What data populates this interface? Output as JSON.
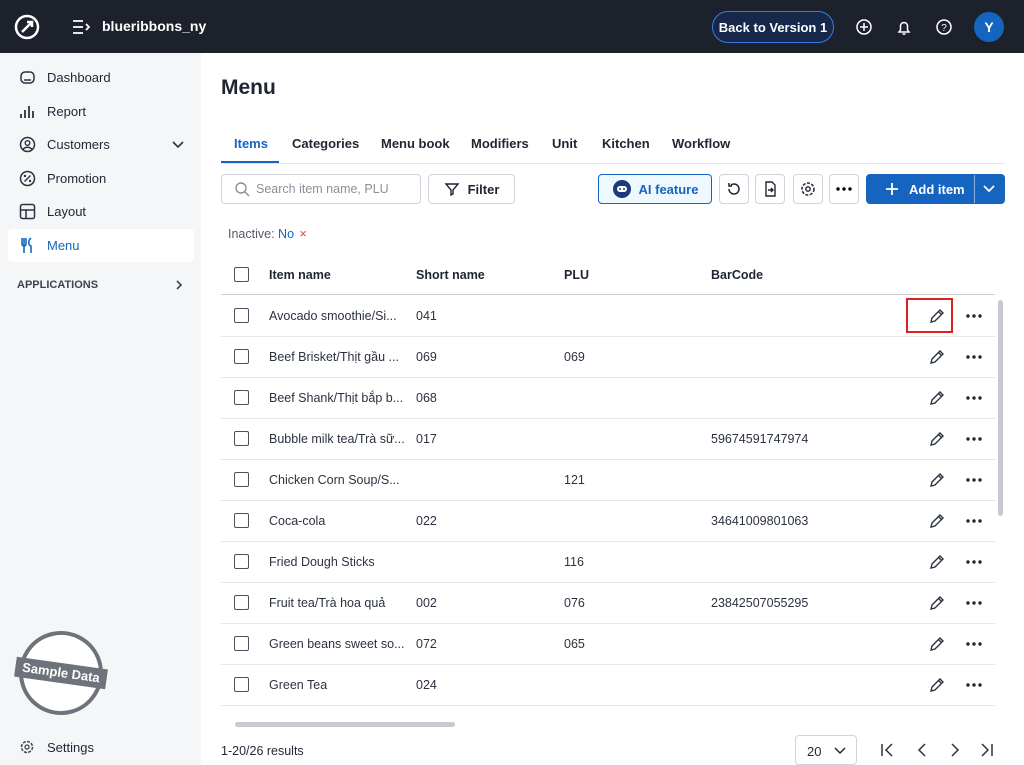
{
  "header": {
    "brand": "blueribbons_ny",
    "back_button": "Back to Version 1",
    "avatar": "Y"
  },
  "sidebar": {
    "items": [
      "Dashboard",
      "Report",
      "Customers",
      "Promotion",
      "Layout",
      "Menu"
    ],
    "applications": "APPLICATIONS",
    "stamp": "Sample Data",
    "settings": "Settings"
  },
  "page": {
    "title": "Menu",
    "tabs": [
      "Items",
      "Categories",
      "Menu book",
      "Modifiers",
      "Unit",
      "Kitchen",
      "Workflow"
    ],
    "search_placeholder": "Search item name, PLU",
    "filter": "Filter",
    "ai_feature": "AI feature",
    "add_item": "Add item",
    "filter_chip": {
      "label": "Inactive:",
      "value": "No"
    }
  },
  "table": {
    "columns": [
      "Item name",
      "Short name",
      "PLU",
      "BarCode"
    ],
    "rows": [
      [
        "Avocado smoothie/Si...",
        "041",
        null,
        null
      ],
      [
        "Beef Brisket/Thịt gầu ...",
        "069",
        "069",
        null
      ],
      [
        "Beef Shank/Thịt bắp b...",
        "068",
        null,
        null
      ],
      [
        "Bubble milk tea/Trà sữ...",
        "017",
        null,
        "59674591747974"
      ],
      [
        "Chicken Corn Soup/S...",
        null,
        "121",
        null
      ],
      [
        "Coca-cola",
        "022",
        null,
        "34641009801063"
      ],
      [
        "Fried Dough Sticks",
        null,
        "116",
        null
      ],
      [
        "Fruit tea/Trà hoa quả",
        "002",
        "076",
        "23842507055295"
      ],
      [
        "Green beans sweet so...",
        "072",
        "065",
        null
      ],
      [
        "Green Tea",
        "024",
        null,
        null
      ]
    ]
  },
  "footer": {
    "results": "1-20/26 results",
    "page_size": "20"
  }
}
